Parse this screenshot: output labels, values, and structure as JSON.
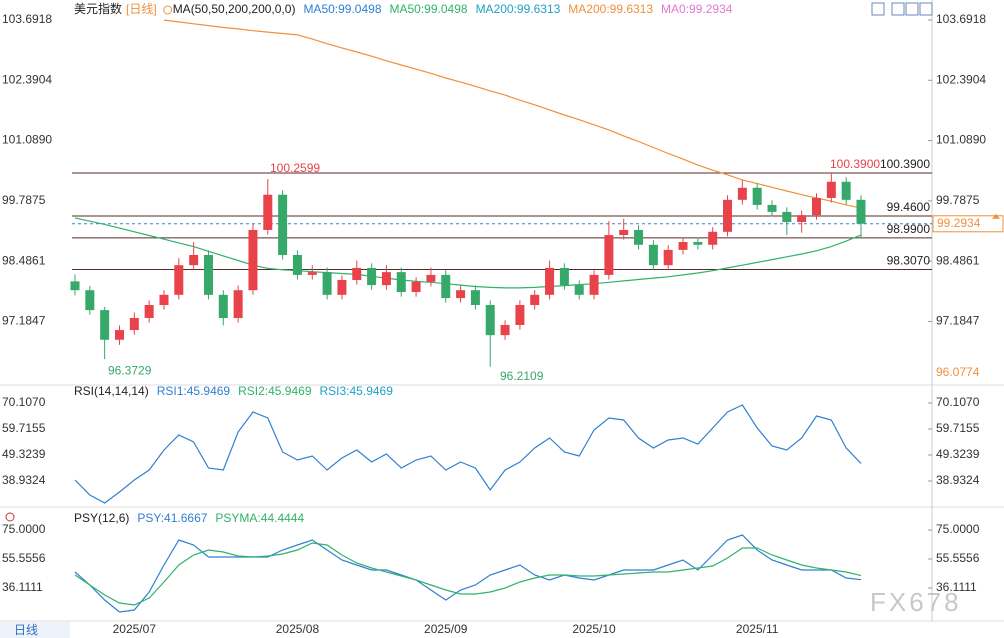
{
  "chart_data": [
    {
      "type": "candlestick",
      "title": "美元指数",
      "period": "[日线]",
      "indicator": "MA(50,50,200,200,0,0)",
      "legend": [
        {
          "label": "MA50:99.0498",
          "color": "#2f80d1"
        },
        {
          "label": "MA50:99.0498",
          "color": "#2fb36a"
        },
        {
          "label": "MA200:99.6313",
          "color": "#1fa0c8"
        },
        {
          "label": "MA200:99.6313",
          "color": "#f0903a"
        },
        {
          "label": "MA0:99.2934",
          "color": "#e07ad0"
        }
      ],
      "categories": [
        null,
        null,
        null,
        null,
        "2025/07",
        null,
        null,
        null,
        null,
        null,
        null,
        null,
        null,
        null,
        null,
        "2025/08",
        null,
        null,
        null,
        null,
        null,
        null,
        null,
        null,
        null,
        "2025/09",
        null,
        null,
        null,
        null,
        null,
        null,
        null,
        null,
        null,
        "2025/10",
        null,
        null,
        null,
        null,
        null,
        null,
        null,
        null,
        null,
        null,
        "2025/11",
        null,
        null,
        null,
        null,
        null,
        null,
        null
      ],
      "candles": [
        [
          98.05,
          98.2,
          97.75,
          97.86
        ],
        [
          97.86,
          97.95,
          97.33,
          97.43
        ],
        [
          97.43,
          97.5,
          96.3729,
          96.79
        ],
        [
          96.79,
          97.1,
          96.68,
          97.0
        ],
        [
          97.0,
          97.38,
          96.9,
          97.26
        ],
        [
          97.26,
          97.64,
          97.16,
          97.54
        ],
        [
          97.54,
          97.86,
          97.44,
          97.76
        ],
        [
          97.76,
          98.55,
          97.66,
          98.4
        ],
        [
          98.4,
          98.9,
          98.3,
          98.62
        ],
        [
          98.62,
          98.72,
          97.66,
          97.76
        ],
        [
          97.76,
          97.86,
          97.1,
          97.26
        ],
        [
          97.26,
          97.96,
          97.16,
          97.86
        ],
        [
          97.86,
          99.3,
          97.76,
          99.16
        ],
        [
          99.16,
          100.2599,
          99.06,
          99.92
        ],
        [
          99.92,
          100.02,
          98.52,
          98.62
        ],
        [
          98.62,
          98.72,
          98.09,
          98.19
        ],
        [
          98.19,
          98.4,
          98.09,
          98.25
        ],
        [
          98.25,
          98.35,
          97.66,
          97.76
        ],
        [
          97.76,
          98.18,
          97.66,
          98.08
        ],
        [
          98.08,
          98.5,
          97.98,
          98.34
        ],
        [
          98.34,
          98.44,
          97.87,
          97.97
        ],
        [
          97.97,
          98.4,
          97.87,
          98.25
        ],
        [
          98.25,
          98.35,
          97.72,
          97.82
        ],
        [
          97.82,
          98.14,
          97.72,
          98.04
        ],
        [
          98.04,
          98.35,
          97.94,
          98.19
        ],
        [
          98.19,
          98.29,
          97.59,
          97.69
        ],
        [
          97.69,
          97.96,
          97.59,
          97.86
        ],
        [
          97.86,
          97.96,
          97.44,
          97.54
        ],
        [
          97.54,
          97.64,
          96.2109,
          96.89
        ],
        [
          96.89,
          97.21,
          96.79,
          97.11
        ],
        [
          97.11,
          97.64,
          97.01,
          97.54
        ],
        [
          97.54,
          97.86,
          97.44,
          97.76
        ],
        [
          97.76,
          98.5,
          97.66,
          98.34
        ],
        [
          98.34,
          98.44,
          97.87,
          97.97
        ],
        [
          97.97,
          98.07,
          97.66,
          97.76
        ],
        [
          97.76,
          98.29,
          97.66,
          98.19
        ],
        [
          98.19,
          99.35,
          98.09,
          99.05
        ],
        [
          99.05,
          99.4,
          98.95,
          99.16
        ],
        [
          99.16,
          99.26,
          98.74,
          98.84
        ],
        [
          98.84,
          98.94,
          98.3,
          98.4
        ],
        [
          98.4,
          98.83,
          98.3,
          98.73
        ],
        [
          98.73,
          99.0,
          98.63,
          98.9
        ],
        [
          98.9,
          99.0,
          98.74,
          98.84
        ],
        [
          98.84,
          99.22,
          98.74,
          99.12
        ],
        [
          99.12,
          99.91,
          99.02,
          99.81
        ],
        [
          99.81,
          100.25,
          99.71,
          100.07
        ],
        [
          100.07,
          100.17,
          99.6,
          99.7
        ],
        [
          99.7,
          99.8,
          99.45,
          99.55
        ],
        [
          99.55,
          99.65,
          99.05,
          99.33
        ],
        [
          99.33,
          99.58,
          99.1,
          99.48
        ],
        [
          99.48,
          99.95,
          99.38,
          99.85
        ],
        [
          99.85,
          100.39,
          99.75,
          100.2
        ],
        [
          100.2,
          100.3,
          99.71,
          99.81
        ],
        [
          99.81,
          99.91,
          99.0,
          99.2934
        ]
      ],
      "up_color": "#e8434b",
      "down_color": "#36a86a",
      "lines": [
        {
          "color": "#2fb36a",
          "values": [
            99.42,
            99.35,
            99.28,
            99.2,
            99.12,
            99.04,
            98.96,
            98.88,
            98.8,
            98.7,
            98.6,
            98.5,
            98.4,
            98.33,
            98.3,
            98.28,
            98.26,
            98.24,
            98.22,
            98.2,
            98.16,
            98.12,
            98.08,
            98.05,
            98.03,
            98.0,
            97.97,
            97.94,
            97.92,
            97.91,
            97.91,
            97.92,
            97.94,
            97.96,
            97.98,
            98.0,
            98.03,
            98.06,
            98.09,
            98.12,
            98.15,
            98.19,
            98.23,
            98.28,
            98.34,
            98.4,
            98.46,
            98.52,
            98.58,
            98.64,
            98.71,
            98.8,
            98.92,
            99.0498
          ]
        },
        {
          "color": "#f0903a",
          "values": [
            null,
            null,
            null,
            null,
            null,
            null,
            103.69,
            103.65,
            103.61,
            103.57,
            103.53,
            103.5,
            103.46,
            103.43,
            103.4,
            103.37,
            103.28,
            103.18,
            103.09,
            103.0,
            102.91,
            102.81,
            102.72,
            102.63,
            102.54,
            102.44,
            102.35,
            102.26,
            102.16,
            102.07,
            101.96,
            101.86,
            101.75,
            101.64,
            101.54,
            101.43,
            101.32,
            101.19,
            101.07,
            100.94,
            100.81,
            100.69,
            100.56,
            100.45,
            100.35,
            100.24,
            100.16,
            100.08,
            100.0,
            99.92,
            99.85,
            99.78,
            99.7,
            99.6313
          ]
        }
      ],
      "ylim": [
        95.857,
        103.907
      ],
      "yticks": [
        103.6918,
        102.3904,
        {
          "value": 101.089,
          "label": "101.0890"
        },
        99.7875,
        98.4861,
        97.1847
      ],
      "hlines": [
        {
          "value": 100.39,
          "label": "100.3900"
        },
        {
          "value": 99.46,
          "label": "99.4600"
        },
        {
          "value": 98.99,
          "label": "98.9900"
        },
        {
          "value": 98.307,
          "label": "98.3070"
        }
      ],
      "annotations": [
        {
          "value": 100.2599,
          "label": "100.2599",
          "color": "#e8434b"
        },
        {
          "value": 96.3729,
          "label": "96.3729",
          "color": "#36a86a"
        },
        {
          "value": 96.2109,
          "label": "96.2109",
          "color": "#36a86a"
        },
        {
          "value": 100.39,
          "label": "100.3900",
          "color": "#e8434b"
        }
      ],
      "last_price": 99.2934,
      "low_tag": 96.0774
    },
    {
      "type": "line",
      "title": "RSI(14,14,14)",
      "legend": [
        {
          "label": "RSI1:45.9469",
          "color": "#2f80d1"
        },
        {
          "label": "RSI2:45.9469",
          "color": "#2fb36a"
        },
        {
          "label": "RSI3:45.9469",
          "color": "#1fa0c8"
        }
      ],
      "lines": [
        {
          "color": "#2f80d1",
          "values": [
            39.34,
            33.34,
            30.15,
            34.54,
            39.34,
            43.33,
            51.32,
            57.32,
            54.52,
            44.13,
            43.33,
            58.52,
            66.51,
            64.11,
            50.53,
            47.33,
            48.93,
            43.33,
            48.13,
            51.32,
            46.53,
            49.73,
            44.13,
            47.33,
            48.93,
            43.33,
            46.53,
            44.13,
            35.34,
            43.33,
            46.53,
            52.12,
            56.12,
            50.53,
            48.93,
            59.32,
            64.11,
            63.31,
            56.12,
            52.12,
            55.32,
            56.12,
            53.72,
            60.12,
            66.51,
            69.31,
            60.12,
            52.92,
            51.32,
            56.12,
            64.91,
            63.31,
            52.12,
            45.9469
          ]
        }
      ],
      "ylim": [
        29.34,
        76.9
      ],
      "yticks": [
        {
          "value": 70.107,
          "label": "70.1070"
        },
        59.7155,
        49.3239,
        38.9324
      ]
    },
    {
      "type": "line",
      "title": "PSY(12,6)",
      "legend": [
        {
          "label": "PSY:41.6667",
          "color": "#2f80d1"
        },
        {
          "label": "PSYMA:44.4444",
          "color": "#2fb36a"
        }
      ],
      "lines": [
        {
          "color": "#2f80d1",
          "values": [
            46.84,
            38.12,
            28.07,
            20.02,
            21.36,
            33.43,
            51.53,
            68.3,
            64.94,
            56.9,
            56.9,
            56.9,
            56.9,
            56.9,
            61.59,
            64.94,
            68.3,
            61.59,
            54.89,
            51.53,
            48.18,
            48.18,
            44.83,
            41.48,
            34.77,
            28.07,
            34.77,
            38.12,
            44.83,
            48.18,
            51.53,
            44.83,
            41.48,
            44.83,
            42.82,
            41.48,
            44.83,
            48.18,
            48.18,
            48.18,
            51.53,
            54.89,
            48.18,
            58.24,
            68.3,
            71.65,
            61.59,
            54.89,
            51.53,
            48.18,
            48.18,
            48.18,
            42.82,
            41.6667
          ]
        },
        {
          "color": "#2fb36a",
          "values": [
            44.83,
            38.12,
            31.42,
            26.05,
            24.71,
            29.41,
            40.14,
            51.53,
            58.24,
            61.59,
            60.25,
            57.57,
            56.9,
            57.57,
            58.91,
            61.59,
            66.28,
            64.94,
            58.24,
            52.87,
            49.52,
            46.84,
            44.16,
            41.48,
            38.12,
            34.77,
            32.09,
            32.09,
            33.43,
            36.11,
            40.14,
            42.82,
            44.83,
            44.83,
            44.16,
            44.16,
            44.83,
            45.5,
            46.17,
            46.84,
            46.84,
            48.18,
            49.52,
            50.86,
            56.23,
            62.93,
            62.93,
            58.24,
            54.89,
            51.53,
            49.52,
            48.18,
            46.84,
            44.4444
          ]
        }
      ],
      "ylim": [
        14.66,
        88.4
      ],
      "yticks": [
        {
          "value": 75,
          "label": "75.0000"
        },
        55.5556,
        36.1111
      ]
    }
  ],
  "watermark": "FX678",
  "period_button": "日线"
}
